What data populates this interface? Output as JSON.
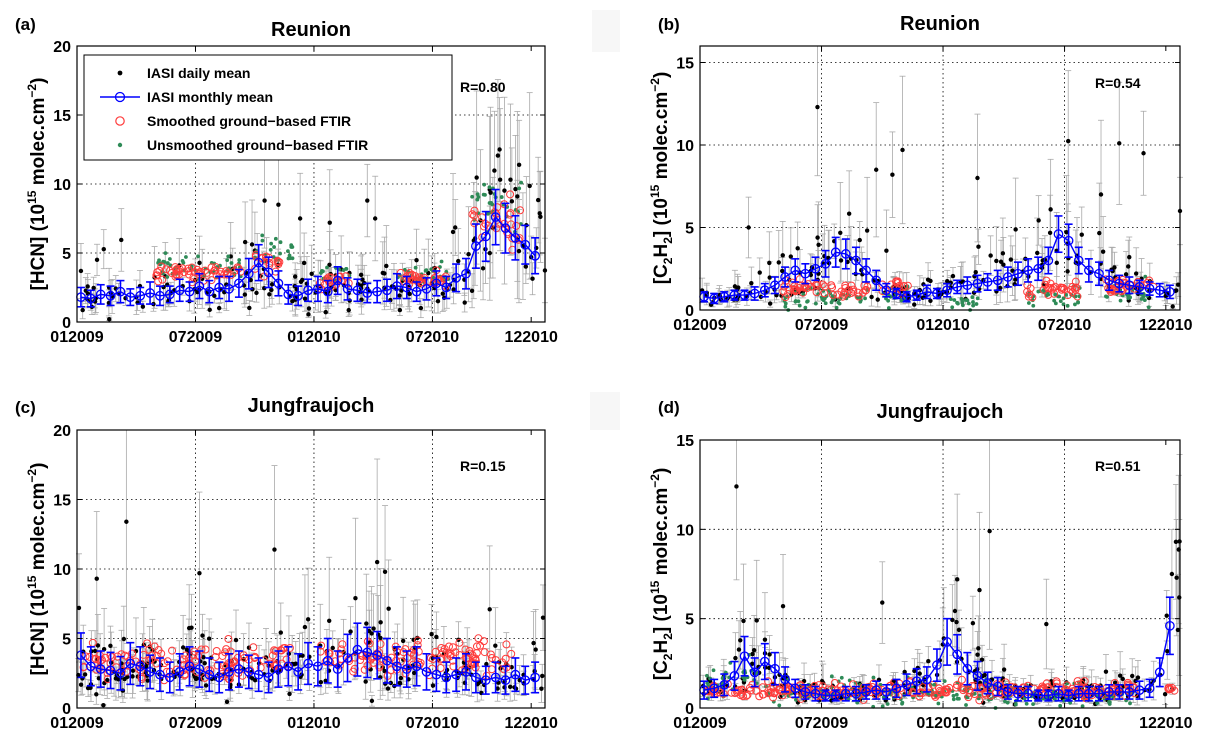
{
  "colors": {
    "daily": "#000000",
    "monthly": "#0000ff",
    "smoothed": "#ff3b3b",
    "unsmoothed": "#2e8b57",
    "error": "#a9a9a9"
  },
  "legend": {
    "daily": "IASI daily mean",
    "monthly": "IASI monthly mean",
    "smoothed": "Smoothed ground−based FTIR",
    "unsmoothed": "Unsmoothed ground−based FTIR"
  },
  "chart_data": [
    {
      "type": "scatter",
      "panel": "(a)",
      "title": "Reunion",
      "ylabel": {
        "pre": "[HCN] (10",
        "sup1": "15",
        "mid": " molec.cm",
        "sup2": "−2",
        "post": ")"
      },
      "xlabel": "",
      "r_label": "R=0.80",
      "x_ticks": [
        "012009",
        "072009",
        "012010",
        "072010",
        "122010"
      ],
      "x_range": [
        "2009-01",
        "2010-12"
      ],
      "ylim": [
        0,
        20
      ],
      "y_ticks": [
        0,
        5,
        10,
        15,
        20
      ],
      "grid": true,
      "legend_position": "top-left",
      "monthly": {
        "x": [
          0.2,
          0.7,
          1.2,
          1.7,
          2.2,
          2.7,
          3.2,
          3.7,
          4.2,
          4.7,
          5.2,
          5.7,
          6.2,
          6.7,
          7.2,
          7.7,
          8.2,
          8.7,
          9.2,
          9.7,
          10.2,
          10.7,
          11.2,
          11.7,
          12.2,
          12.7,
          13.2,
          13.7,
          14.2,
          14.7,
          15.2,
          15.7,
          16.2,
          16.7,
          17.2,
          17.7,
          18.2,
          18.7,
          19.2,
          19.7,
          20.2,
          20.7,
          21.2,
          21.7,
          22.2,
          22.7,
          23.2
        ],
        "y": [
          1.8,
          1.7,
          2.0,
          1.9,
          2.2,
          1.8,
          1.9,
          2.1,
          1.9,
          2.0,
          2.3,
          2.2,
          2.6,
          2.2,
          2.5,
          2.4,
          2.8,
          3.5,
          4.3,
          3.6,
          2.8,
          2.0,
          1.9,
          2.3,
          2.4,
          2.2,
          3.0,
          2.4,
          2.3,
          2.1,
          2.2,
          2.3,
          2.6,
          2.5,
          2.2,
          2.4,
          2.8,
          2.5,
          3.2,
          3.5,
          5.5,
          6.2,
          7.6,
          6.8,
          6.1,
          5.6,
          4.8
        ],
        "err": [
          0.7,
          0.6,
          0.7,
          0.7,
          0.8,
          0.6,
          0.6,
          0.8,
          0.7,
          0.6,
          0.8,
          0.7,
          0.9,
          0.8,
          0.8,
          0.9,
          1.0,
          1.1,
          1.3,
          1.1,
          0.9,
          0.7,
          0.7,
          0.8,
          0.9,
          0.8,
          1.0,
          0.8,
          0.8,
          0.7,
          0.8,
          0.8,
          0.9,
          0.8,
          0.7,
          0.8,
          0.9,
          0.8,
          1.0,
          1.1,
          1.6,
          1.8,
          2.0,
          1.8,
          1.6,
          1.4,
          1.3
        ]
      },
      "smoothed": [
        {
          "x0": 4.0,
          "x1": 8.3,
          "y": 3.6,
          "sd": 0.35
        },
        {
          "x0": 9.0,
          "x1": 10.3,
          "y": 4.4,
          "sd": 0.5
        },
        {
          "x0": 12.3,
          "x1": 13.8,
          "y": 3.0,
          "sd": 0.3
        },
        {
          "x0": 16.1,
          "x1": 18.8,
          "y": 3.1,
          "sd": 0.3
        },
        {
          "x0": 20.0,
          "x1": 22.5,
          "y": 7.2,
          "sd": 0.9
        }
      ],
      "unsmoothed": [
        {
          "x0": 4.0,
          "x1": 8.3,
          "y": 4.0,
          "sd": 0.45
        },
        {
          "x0": 9.0,
          "x1": 11.0,
          "y": 5.0,
          "sd": 0.6
        },
        {
          "x0": 12.3,
          "x1": 13.8,
          "y": 3.4,
          "sd": 0.35
        },
        {
          "x0": 16.1,
          "x1": 18.8,
          "y": 3.4,
          "sd": 0.35
        },
        {
          "x0": 20.0,
          "x1": 22.5,
          "y": 8.8,
          "sd": 1.0
        }
      ],
      "daily_gen": {
        "n": 190,
        "seed": 11
      },
      "outliers": [
        {
          "x": 9.5,
          "y": 8.8
        },
        {
          "x": 10.2,
          "y": 8.5
        },
        {
          "x": 12.8,
          "y": 7.2
        },
        {
          "x": 14.7,
          "y": 8.8
        },
        {
          "x": 15.1,
          "y": 7.5
        },
        {
          "x": 21.4,
          "y": 12.5
        },
        {
          "x": 20.9,
          "y": 9.6
        },
        {
          "x": 22.3,
          "y": 9.1
        },
        {
          "x": 0.2,
          "y": 3.7
        },
        {
          "x": 11.3,
          "y": 7.5
        }
      ]
    },
    {
      "type": "scatter",
      "panel": "(b)",
      "title": "Reunion",
      "ylabel": {
        "pre": "[C",
        "sub1": "2",
        "mid0": "H",
        "sub2": "2",
        "pre2": "] (10",
        "sup1": "15",
        "mid": " molec.cm",
        "sup2": "−2",
        "post": ")"
      },
      "xlabel": "",
      "r_label": "R=0.54",
      "x_ticks": [
        "012009",
        "072009",
        "012010",
        "072010",
        "122010"
      ],
      "x_range": [
        "2009-01",
        "2010-12"
      ],
      "ylim": [
        0,
        16
      ],
      "y_ticks": [
        0,
        5,
        10,
        15
      ],
      "grid": true,
      "monthly": {
        "x": [
          0.2,
          0.7,
          1.2,
          1.7,
          2.2,
          2.7,
          3.2,
          3.7,
          4.2,
          4.7,
          5.2,
          5.7,
          6.2,
          6.7,
          7.2,
          7.7,
          8.2,
          8.7,
          9.2,
          9.7,
          10.2,
          10.7,
          11.2,
          11.7,
          12.2,
          12.7,
          13.2,
          13.7,
          14.2,
          14.7,
          15.2,
          15.7,
          16.2,
          16.7,
          17.2,
          17.7,
          18.2,
          18.7,
          19.2,
          19.7,
          20.2,
          20.7,
          21.2,
          21.7,
          22.2,
          22.7,
          23.2
        ],
        "y": [
          0.8,
          0.7,
          0.8,
          0.9,
          0.9,
          1.0,
          1.2,
          1.5,
          2.0,
          2.4,
          2.2,
          2.5,
          2.8,
          3.5,
          3.4,
          3.0,
          2.4,
          1.8,
          1.2,
          1.0,
          0.8,
          0.9,
          1.1,
          1.0,
          1.2,
          1.4,
          1.5,
          1.6,
          1.7,
          1.8,
          2.0,
          2.2,
          2.4,
          2.5,
          3.0,
          4.6,
          4.2,
          3.0,
          2.4,
          2.2,
          1.8,
          1.6,
          1.5,
          1.4,
          1.3,
          1.2,
          1.1
        ],
        "err": [
          0.3,
          0.3,
          0.3,
          0.3,
          0.3,
          0.4,
          0.4,
          0.5,
          0.6,
          0.7,
          0.6,
          0.7,
          0.8,
          0.9,
          0.9,
          0.8,
          0.7,
          0.6,
          0.4,
          0.3,
          0.3,
          0.3,
          0.4,
          0.3,
          0.4,
          0.4,
          0.5,
          0.5,
          0.5,
          0.6,
          0.6,
          0.7,
          0.7,
          0.7,
          0.8,
          1.1,
          1.0,
          0.8,
          0.7,
          0.7,
          0.6,
          0.5,
          0.5,
          0.4,
          0.4,
          0.4,
          0.4
        ]
      },
      "smoothed": [
        {
          "x0": 4.0,
          "x1": 8.3,
          "y": 1.3,
          "sd": 0.25
        },
        {
          "x0": 9.0,
          "x1": 10.3,
          "y": 1.4,
          "sd": 0.25
        },
        {
          "x0": 16.1,
          "x1": 18.8,
          "y": 1.2,
          "sd": 0.25
        },
        {
          "x0": 20.0,
          "x1": 22.5,
          "y": 1.4,
          "sd": 0.3
        }
      ],
      "unsmoothed": [
        {
          "x0": 4.0,
          "x1": 8.3,
          "y": 0.8,
          "sd": 0.3
        },
        {
          "x0": 9.0,
          "x1": 10.3,
          "y": 1.0,
          "sd": 0.3
        },
        {
          "x0": 12.3,
          "x1": 13.8,
          "y": 0.4,
          "sd": 0.2
        },
        {
          "x0": 16.1,
          "x1": 18.8,
          "y": 0.8,
          "sd": 0.3
        },
        {
          "x0": 20.0,
          "x1": 22.5,
          "y": 1.0,
          "sd": 0.3
        }
      ],
      "daily_gen": {
        "n": 190,
        "seed": 23
      },
      "outliers": [
        {
          "x": 5.8,
          "y": 12.3
        },
        {
          "x": 2.4,
          "y": 5.0
        },
        {
          "x": 10.0,
          "y": 9.7
        },
        {
          "x": 13.7,
          "y": 8.0
        },
        {
          "x": 9.5,
          "y": 8.2
        },
        {
          "x": 8.7,
          "y": 8.5
        },
        {
          "x": 20.7,
          "y": 10.1
        },
        {
          "x": 21.9,
          "y": 9.5
        },
        {
          "x": 23.7,
          "y": 6.0
        },
        {
          "x": 19.8,
          "y": 7.0
        }
      ]
    },
    {
      "type": "scatter",
      "panel": "(c)",
      "title": "Jungfraujoch",
      "ylabel": {
        "pre": "[HCN] (10",
        "sup1": "15",
        "mid": " molec.cm",
        "sup2": "−2",
        "post": ")"
      },
      "xlabel": "",
      "r_label": "R=0.15",
      "x_ticks": [
        "012009",
        "072009",
        "012010",
        "072010",
        "122010"
      ],
      "x_range": [
        "2009-01",
        "2010-12"
      ],
      "ylim": [
        0,
        20
      ],
      "y_ticks": [
        0,
        5,
        10,
        15,
        20
      ],
      "grid": true,
      "monthly": {
        "x": [
          0.2,
          0.7,
          1.2,
          1.7,
          2.2,
          2.7,
          3.2,
          3.7,
          4.2,
          4.7,
          5.2,
          5.7,
          6.2,
          6.7,
          7.2,
          7.7,
          8.2,
          8.7,
          9.2,
          9.7,
          10.2,
          10.7,
          11.2,
          11.7,
          12.2,
          12.7,
          13.2,
          13.7,
          14.2,
          14.7,
          15.2,
          15.7,
          16.2,
          16.7,
          17.2,
          17.7,
          18.2,
          18.7,
          19.2,
          19.7,
          20.2,
          20.7,
          21.2,
          21.7,
          22.2,
          22.7,
          23.2
        ],
        "y": [
          3.8,
          3.0,
          2.8,
          2.7,
          2.5,
          3.2,
          3.0,
          2.6,
          2.4,
          2.2,
          2.6,
          3.0,
          2.8,
          2.4,
          2.2,
          2.6,
          2.8,
          2.6,
          2.4,
          2.2,
          2.8,
          3.0,
          2.6,
          3.2,
          3.0,
          3.4,
          2.8,
          3.6,
          4.2,
          4.0,
          3.8,
          3.4,
          3.0,
          2.8,
          3.0,
          2.6,
          2.4,
          2.2,
          2.4,
          2.6,
          2.2,
          2.0,
          2.2,
          2.0,
          2.4,
          2.0,
          2.2
        ],
        "err": [
          1.6,
          1.4,
          1.3,
          1.3,
          1.2,
          1.5,
          1.4,
          1.2,
          1.2,
          1.1,
          1.3,
          1.4,
          1.3,
          1.2,
          1.1,
          1.3,
          1.3,
          1.2,
          1.2,
          1.1,
          1.3,
          1.4,
          1.3,
          1.5,
          1.4,
          1.6,
          1.3,
          1.7,
          1.9,
          1.8,
          1.7,
          1.6,
          1.4,
          1.3,
          1.4,
          1.3,
          1.2,
          1.1,
          1.2,
          1.3,
          1.1,
          1.0,
          1.1,
          1.0,
          1.2,
          1.0,
          1.1
        ]
      },
      "smoothed": [
        {
          "x0": 0.3,
          "x1": 10.8,
          "y": 3.3,
          "sd": 0.6
        },
        {
          "x0": 12.2,
          "x1": 22.0,
          "y": 3.7,
          "sd": 0.7
        }
      ],
      "unsmoothed": [],
      "daily_gen": {
        "n": 220,
        "seed": 37
      },
      "outliers": [
        {
          "x": 2.5,
          "y": 13.4
        },
        {
          "x": 6.2,
          "y": 9.7
        },
        {
          "x": 10.0,
          "y": 11.4
        },
        {
          "x": 20.9,
          "y": 7.1
        },
        {
          "x": 15.6,
          "y": 9.8
        },
        {
          "x": 15.2,
          "y": 10.5
        },
        {
          "x": 14.1,
          "y": 7.9
        },
        {
          "x": 1.0,
          "y": 9.3
        },
        {
          "x": 0.1,
          "y": 7.2
        },
        {
          "x": 23.6,
          "y": 6.5
        }
      ]
    },
    {
      "type": "scatter",
      "panel": "(d)",
      "title": "Jungfraujoch",
      "ylabel": {
        "pre": "[C",
        "sub1": "2",
        "mid0": "H",
        "sub2": "2",
        "pre2": "] (10",
        "sup1": "15",
        "mid": " molec.cm",
        "sup2": "−2",
        "post": ")"
      },
      "xlabel": "",
      "r_label": "R=0.51",
      "x_ticks": [
        "012009",
        "072009",
        "012010",
        "072010",
        "122010"
      ],
      "x_range": [
        "2009-01",
        "2010-12"
      ],
      "ylim": [
        0,
        15
      ],
      "y_ticks": [
        0,
        5,
        10,
        15
      ],
      "grid": true,
      "monthly": {
        "x": [
          0.2,
          0.7,
          1.2,
          1.7,
          2.2,
          2.7,
          3.2,
          3.7,
          4.2,
          4.7,
          5.2,
          5.7,
          6.2,
          6.7,
          7.2,
          7.7,
          8.2,
          8.7,
          9.2,
          9.7,
          10.2,
          10.7,
          11.2,
          11.7,
          12.2,
          12.7,
          13.2,
          13.7,
          14.2,
          14.7,
          15.2,
          15.7,
          16.2,
          16.7,
          17.2,
          17.7,
          18.2,
          18.7,
          19.2,
          19.7,
          20.2,
          20.7,
          21.2,
          21.7,
          22.2,
          22.7,
          23.2
        ],
        "y": [
          1.0,
          1.1,
          1.3,
          1.8,
          2.9,
          2.0,
          2.6,
          2.2,
          1.6,
          1.1,
          0.9,
          0.8,
          0.7,
          0.7,
          0.8,
          0.8,
          0.9,
          1.0,
          0.9,
          1.1,
          1.3,
          1.5,
          1.6,
          2.4,
          3.7,
          3.0,
          2.2,
          1.8,
          1.4,
          1.2,
          0.9,
          0.8,
          0.8,
          0.7,
          0.7,
          0.8,
          0.7,
          0.8,
          0.8,
          0.8,
          0.9,
          0.9,
          0.9,
          1.0,
          1.1,
          2.0,
          4.6
        ],
        "err": [
          0.5,
          0.5,
          0.6,
          0.8,
          1.1,
          0.8,
          1.0,
          0.9,
          0.7,
          0.5,
          0.4,
          0.4,
          0.3,
          0.3,
          0.4,
          0.4,
          0.4,
          0.5,
          0.4,
          0.5,
          0.6,
          0.7,
          0.7,
          0.9,
          1.3,
          1.1,
          0.9,
          0.8,
          0.6,
          0.5,
          0.4,
          0.4,
          0.4,
          0.3,
          0.3,
          0.4,
          0.3,
          0.4,
          0.4,
          0.4,
          0.4,
          0.4,
          0.4,
          0.5,
          0.5,
          0.8,
          1.6
        ]
      },
      "smoothed": [
        {
          "x0": 0.3,
          "x1": 21.5,
          "y": 1.0,
          "sd": 0.2
        },
        {
          "x0": 23.0,
          "x1": 23.5,
          "y": 1.1,
          "sd": 0.1
        }
      ],
      "unsmoothed": [
        {
          "x0": 0.3,
          "x1": 3.0,
          "y": 1.6,
          "sd": 0.5
        },
        {
          "x0": 3.0,
          "x1": 10.0,
          "y": 0.8,
          "sd": 0.4
        },
        {
          "x0": 10.0,
          "x1": 21.5,
          "y": 0.8,
          "sd": 0.35
        }
      ],
      "daily_gen": {
        "n": 230,
        "seed": 53
      },
      "outliers": [
        {
          "x": 1.8,
          "y": 12.4
        },
        {
          "x": 14.3,
          "y": 9.9
        },
        {
          "x": 12.7,
          "y": 7.2
        },
        {
          "x": 13.8,
          "y": 6.6
        },
        {
          "x": 9.0,
          "y": 5.9
        },
        {
          "x": 23.5,
          "y": 9.3
        },
        {
          "x": 23.3,
          "y": 7.5
        },
        {
          "x": 2.8,
          "y": 4.9
        },
        {
          "x": 4.1,
          "y": 5.7
        },
        {
          "x": 17.1,
          "y": 4.7
        }
      ]
    }
  ]
}
